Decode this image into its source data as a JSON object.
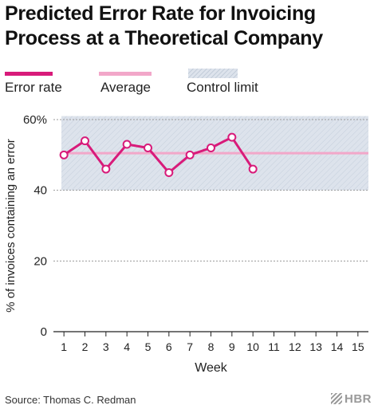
{
  "title": "Predicted Error Rate for Invoicing Process at a Theoretical Company",
  "legend": {
    "error_rate": "Error rate",
    "average": "Average",
    "control_limit": "Control limit"
  },
  "source": "Source: Thomas C. Redman",
  "logo": "HBR",
  "colors": {
    "line": "#d81b7a",
    "average": "#f2a7c9",
    "control_fill": "#dde3ec",
    "grid": "#9a9a9a"
  },
  "chart_data": {
    "type": "line",
    "xlabel": "Week",
    "ylabel": "% of invoices containing an error",
    "x_ticks": [
      1,
      2,
      3,
      4,
      5,
      6,
      7,
      8,
      9,
      10,
      11,
      12,
      13,
      14,
      15
    ],
    "xlim": [
      0.5,
      15.5
    ],
    "ylim": [
      0,
      60
    ],
    "y_ticks": [
      0,
      20,
      40,
      60
    ],
    "y_tick_labels": [
      "0",
      "20",
      "40",
      "60%"
    ],
    "series": [
      {
        "name": "Error rate",
        "x": [
          1,
          2,
          3,
          4,
          5,
          6,
          7,
          8,
          9,
          10
        ],
        "values": [
          50,
          54,
          46,
          53,
          52,
          45,
          50,
          52,
          55,
          46
        ]
      }
    ],
    "average": 50.5,
    "control_limit": [
      40,
      61
    ],
    "grid": true
  }
}
